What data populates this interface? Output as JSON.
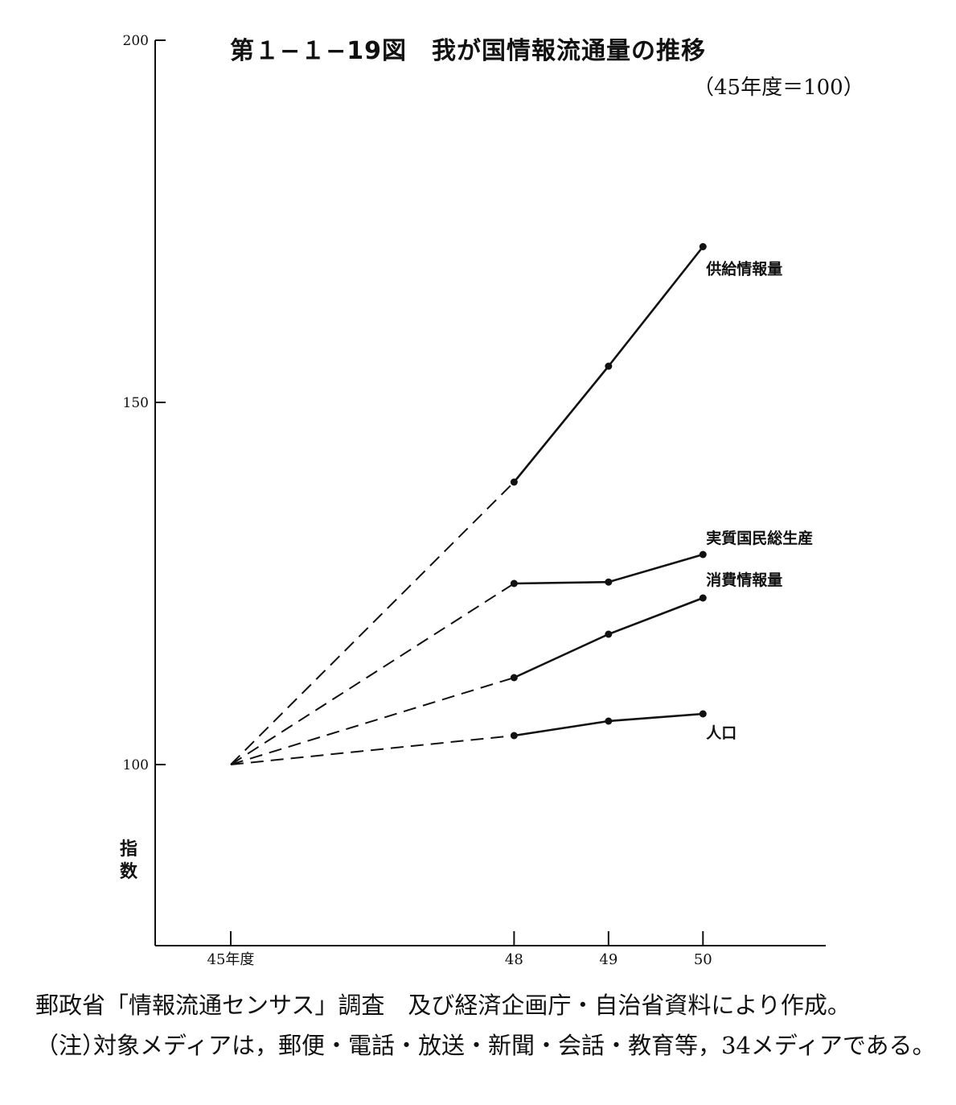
{
  "chart_data": {
    "type": "line",
    "title": "第１−１−19図　我が国情報流通量の推移",
    "subtitle": "（45年度＝100）",
    "ylabel": "指数",
    "ylim": [
      75,
      200
    ],
    "yticks": [
      {
        "value": 200,
        "label": "200"
      },
      {
        "value": 150,
        "label": "150"
      },
      {
        "value": 100,
        "label": "100"
      }
    ],
    "xticks": [
      {
        "value": 45,
        "label": "45年度"
      },
      {
        "value": 48,
        "label": "48"
      },
      {
        "value": 49,
        "label": "49"
      },
      {
        "value": 50,
        "label": "50"
      }
    ],
    "xlim": [
      44.2,
      51.3
    ],
    "dashed_segment": {
      "from": 45,
      "to": 48
    },
    "grid": false,
    "legend": "labels at line ends",
    "series": [
      {
        "name": "供給情報量",
        "x": [
          45,
          48,
          49,
          50
        ],
        "values": [
          100,
          139,
          155,
          171.5
        ]
      },
      {
        "name": "実質国民総生産",
        "x": [
          45,
          48,
          49,
          50
        ],
        "values": [
          100,
          125,
          125.2,
          129
        ]
      },
      {
        "name": "消費情報量",
        "x": [
          45,
          48,
          49,
          50
        ],
        "values": [
          100,
          112,
          118,
          123
        ]
      },
      {
        "name": "人口",
        "x": [
          45,
          48,
          49,
          50
        ],
        "values": [
          100,
          104,
          106,
          107
        ]
      }
    ]
  },
  "source_text": "郵政省「情報流通センサス」調査　及び経済企画庁・自治省資料により作成。",
  "note_label": "（注）",
  "note_text": "対象メディアは，郵便・電話・放送・新聞・会話・教育等，34メディアである。",
  "colors": {
    "line": "#111111",
    "background": "#ffffff"
  }
}
